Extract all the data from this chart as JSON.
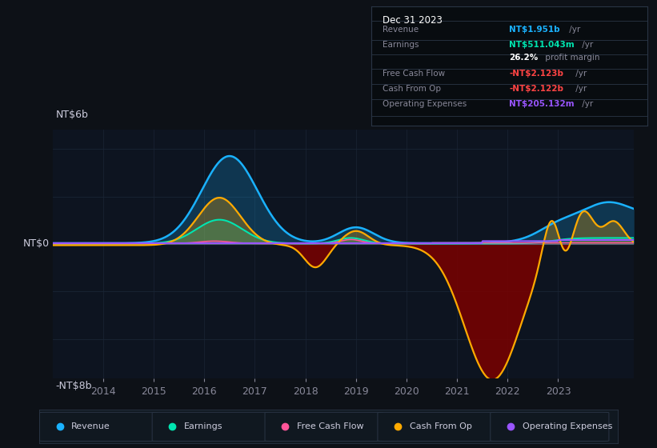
{
  "background_color": "#0d1117",
  "plot_bg_color": "#0d1420",
  "ylabel_top": "NT$6b",
  "ylabel_zero": "NT$0",
  "ylabel_bottom": "-NT$8b",
  "ylim": [
    -8.5,
    7.2
  ],
  "xlim": [
    2013.0,
    2024.5
  ],
  "xticks": [
    2014,
    2015,
    2016,
    2017,
    2018,
    2019,
    2020,
    2021,
    2022,
    2023
  ],
  "grid_color": "#1a2535",
  "zero_line_color": "#556677",
  "colors": {
    "revenue": "#1ab2ff",
    "earnings": "#00e5b0",
    "free_cash_flow": "#ff5599",
    "cash_from_op": "#ffaa00",
    "operating_expenses": "#9955ff"
  },
  "legend_items": [
    {
      "label": "Revenue",
      "color": "#1ab2ff"
    },
    {
      "label": "Earnings",
      "color": "#00e5b0"
    },
    {
      "label": "Free Cash Flow",
      "color": "#ff5599"
    },
    {
      "label": "Cash From Op",
      "color": "#ffaa00"
    },
    {
      "label": "Operating Expenses",
      "color": "#9955ff"
    }
  ],
  "info_box_title": "Dec 31 2023",
  "info_rows": [
    {
      "label": "Revenue",
      "value": "NT$1.951b",
      "suffix": " /yr",
      "color": "#1ab2ff"
    },
    {
      "label": "Earnings",
      "value": "NT$511.043m",
      "suffix": " /yr",
      "color": "#00e5b0"
    },
    {
      "label": "",
      "value": "26.2%",
      "suffix": " profit margin",
      "color": "#ffffff"
    },
    {
      "label": "Free Cash Flow",
      "value": "-NT$2.123b",
      "suffix": " /yr",
      "color": "#ff4444"
    },
    {
      "label": "Cash From Op",
      "value": "-NT$2.122b",
      "suffix": " /yr",
      "color": "#ff4444"
    },
    {
      "label": "Operating Expenses",
      "value": "NT$205.132m",
      "suffix": " /yr",
      "color": "#9955ff"
    }
  ]
}
